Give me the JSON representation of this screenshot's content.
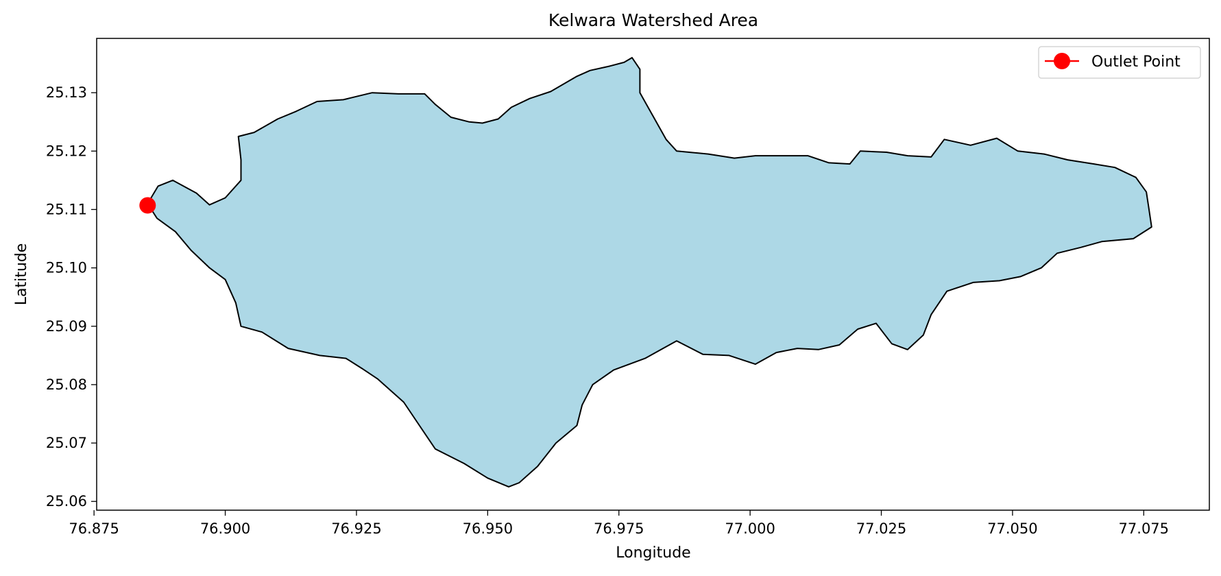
{
  "chart_data": {
    "type": "map",
    "title": "Kelwara Watershed Area",
    "xlabel": "Longitude",
    "ylabel": "Latitude",
    "xlim": [
      76.8755,
      77.0875
    ],
    "ylim": [
      25.0585,
      25.1393
    ],
    "x_ticks": [
      76.875,
      76.9,
      76.925,
      76.95,
      76.975,
      77.0,
      77.025,
      77.05,
      77.075
    ],
    "x_tick_labels": [
      "76.875",
      "76.900",
      "76.925",
      "76.950",
      "76.975",
      "77.000",
      "77.025",
      "77.050",
      "77.075"
    ],
    "y_ticks": [
      25.06,
      25.07,
      25.08,
      25.09,
      25.1,
      25.11,
      25.12,
      25.13
    ],
    "y_tick_labels": [
      "25.06",
      "25.07",
      "25.08",
      "25.09",
      "25.10",
      "25.11",
      "25.12",
      "25.13"
    ],
    "grid": false,
    "legend_position": "top-right",
    "watershed": {
      "fill_color": "#add8e6",
      "edge_color": "#000000",
      "boundary": [
        [
          76.8852,
          25.111
        ],
        [
          76.8872,
          25.114
        ],
        [
          76.89,
          25.115
        ],
        [
          76.8945,
          25.1128
        ],
        [
          76.897,
          25.1108
        ],
        [
          76.9,
          25.112
        ],
        [
          76.903,
          25.115
        ],
        [
          76.903,
          25.1185
        ],
        [
          76.9025,
          25.1225
        ],
        [
          76.9055,
          25.1232
        ],
        [
          76.91,
          25.1255
        ],
        [
          76.9135,
          25.1268
        ],
        [
          76.9175,
          25.1285
        ],
        [
          76.9225,
          25.1288
        ],
        [
          76.928,
          25.13
        ],
        [
          76.933,
          25.1298
        ],
        [
          76.938,
          25.1298
        ],
        [
          76.94,
          25.128
        ],
        [
          76.943,
          25.1258
        ],
        [
          76.9465,
          25.125
        ],
        [
          76.949,
          25.1248
        ],
        [
          76.952,
          25.1255
        ],
        [
          76.9545,
          25.1275
        ],
        [
          76.958,
          25.129
        ],
        [
          76.962,
          25.1302
        ],
        [
          76.967,
          25.1328
        ],
        [
          76.9695,
          25.1338
        ],
        [
          76.973,
          25.1345
        ],
        [
          76.976,
          25.1352
        ],
        [
          76.9775,
          25.136
        ],
        [
          76.979,
          25.134
        ],
        [
          76.979,
          25.13
        ],
        [
          76.9815,
          25.126
        ],
        [
          76.984,
          25.122
        ],
        [
          76.986,
          25.12
        ],
        [
          76.992,
          25.1195
        ],
        [
          76.997,
          25.1188
        ],
        [
          77.001,
          25.1192
        ],
        [
          77.006,
          25.1192
        ],
        [
          77.011,
          25.1192
        ],
        [
          77.015,
          25.118
        ],
        [
          77.019,
          25.1178
        ],
        [
          77.021,
          25.12
        ],
        [
          77.026,
          25.1198
        ],
        [
          77.03,
          25.1192
        ],
        [
          77.0345,
          25.119
        ],
        [
          77.037,
          25.122
        ],
        [
          77.042,
          25.121
        ],
        [
          77.047,
          25.1222
        ],
        [
          77.051,
          25.12
        ],
        [
          77.056,
          25.1195
        ],
        [
          77.0605,
          25.1185
        ],
        [
          77.0655,
          25.1178
        ],
        [
          77.0695,
          25.1172
        ],
        [
          77.0735,
          25.1155
        ],
        [
          77.0755,
          25.113
        ],
        [
          77.076,
          25.11
        ],
        [
          77.0765,
          25.107
        ],
        [
          77.073,
          25.105
        ],
        [
          77.067,
          25.1045
        ],
        [
          77.063,
          25.1035
        ],
        [
          77.0585,
          25.1025
        ],
        [
          77.0555,
          25.1
        ],
        [
          77.0515,
          25.0985
        ],
        [
          77.0475,
          25.0978
        ],
        [
          77.0425,
          25.0975
        ],
        [
          77.0375,
          25.096
        ],
        [
          77.0345,
          25.092
        ],
        [
          77.033,
          25.0885
        ],
        [
          77.03,
          25.086
        ],
        [
          77.027,
          25.087
        ],
        [
          77.024,
          25.0905
        ],
        [
          77.0205,
          25.0895
        ],
        [
          77.017,
          25.0868
        ],
        [
          77.013,
          25.086
        ],
        [
          77.009,
          25.0862
        ],
        [
          77.005,
          25.0855
        ],
        [
          77.001,
          25.0835
        ],
        [
          76.996,
          25.085
        ],
        [
          76.991,
          25.0852
        ],
        [
          76.986,
          25.0875
        ],
        [
          76.98,
          25.0845
        ],
        [
          76.974,
          25.0825
        ],
        [
          76.97,
          25.08
        ],
        [
          76.968,
          25.0765
        ],
        [
          76.967,
          25.073
        ],
        [
          76.963,
          25.07
        ],
        [
          76.9595,
          25.066
        ],
        [
          76.956,
          25.0632
        ],
        [
          76.954,
          25.0625
        ],
        [
          76.95,
          25.064
        ],
        [
          76.9455,
          25.0665
        ],
        [
          76.94,
          25.069
        ],
        [
          76.937,
          25.073
        ],
        [
          76.934,
          25.077
        ],
        [
          76.929,
          25.081
        ],
        [
          76.926,
          25.0828
        ],
        [
          76.923,
          25.0845
        ],
        [
          76.918,
          25.085
        ],
        [
          76.912,
          25.0862
        ],
        [
          76.907,
          25.089
        ],
        [
          76.903,
          25.09
        ],
        [
          76.902,
          25.094
        ],
        [
          76.9,
          25.098
        ],
        [
          76.897,
          25.1
        ],
        [
          76.8935,
          25.103
        ],
        [
          76.8905,
          25.1062
        ],
        [
          76.887,
          25.1085
        ],
        [
          76.8852,
          25.111
        ]
      ]
    },
    "series": [
      {
        "name": "Outlet Point",
        "color": "#ff0000",
        "marker": "circle",
        "points": [
          [
            76.8852,
            25.1107
          ]
        ]
      }
    ]
  }
}
